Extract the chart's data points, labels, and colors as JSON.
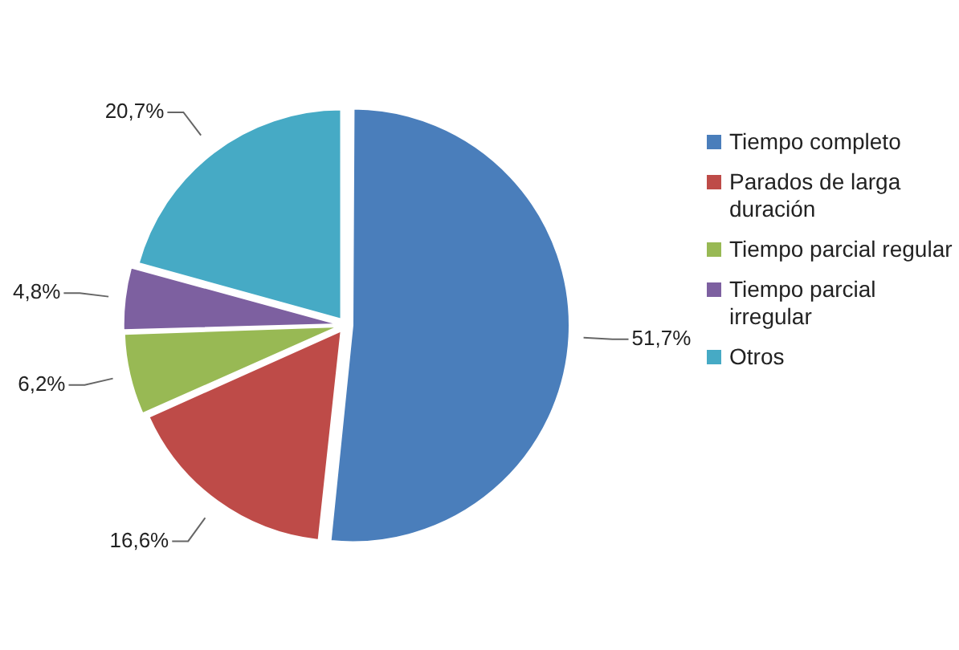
{
  "chart_data": {
    "type": "pie",
    "categories": [
      "Tiempo completo",
      "Parados de larga duración",
      "Tiempo parcial regular",
      "Tiempo parcial irregular",
      "Otros"
    ],
    "values": [
      51.7,
      16.6,
      6.2,
      4.8,
      20.7
    ],
    "value_labels": [
      "51,7%",
      "16,6%",
      "6,2%",
      "4,8%",
      "20,7%"
    ],
    "colors": [
      "#4a7ebb",
      "#be4b48",
      "#98b954",
      "#7d60a0",
      "#46aac5"
    ],
    "legend": "right"
  }
}
